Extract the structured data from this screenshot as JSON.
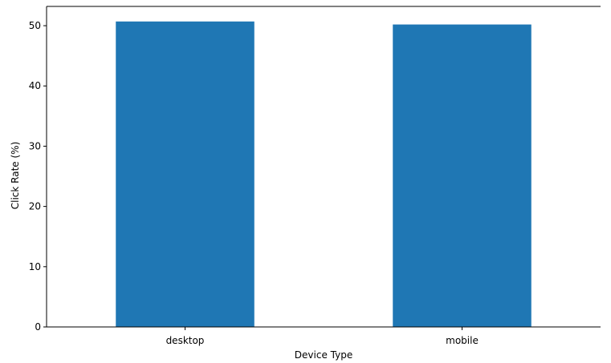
{
  "chart_data": {
    "type": "bar",
    "title": "",
    "xlabel": "Device Type",
    "ylabel": "Click Rate (%)",
    "categories": [
      "desktop",
      "mobile"
    ],
    "values": [
      50.7,
      50.2
    ],
    "ylim": [
      0,
      53.2
    ],
    "yticks": [
      0,
      10,
      20,
      30,
      40,
      50
    ],
    "grid": false,
    "legend": "none",
    "bar_color": "#1f77b4",
    "frame_sides": [
      "left",
      "top",
      "bottom"
    ]
  }
}
